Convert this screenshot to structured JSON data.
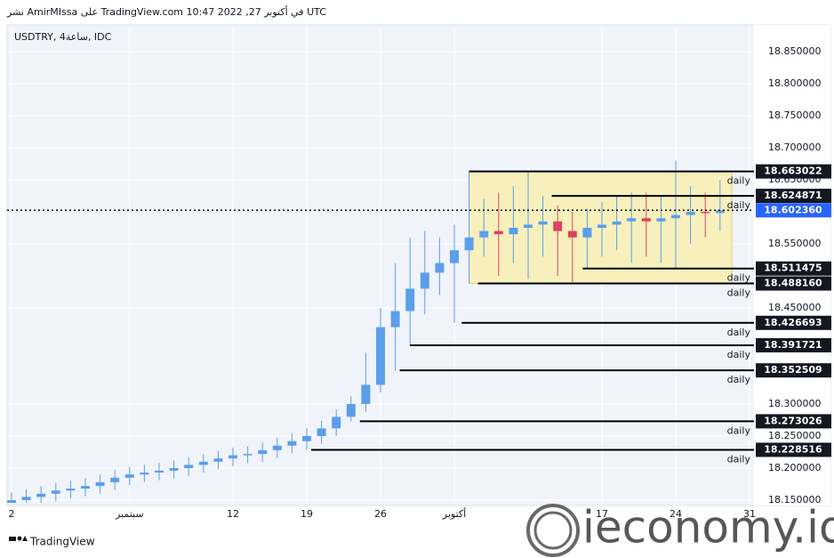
{
  "header": {
    "text": "نشر AmirMIssa على TradingView.com في أكتوبر 27, 2022 10:47 UTC"
  },
  "footer": {
    "brand": "TradingView",
    "watermark": "ieconomy.io"
  },
  "chart_data": {
    "type": "candlestick",
    "symbol": "USDTRY, 4ساعة, IDC",
    "up_color": "#5b9ee9",
    "down_color": "#e0405f",
    "x": [
      0,
      1,
      2,
      3,
      4,
      5,
      6,
      7,
      8,
      9,
      10,
      11,
      12,
      13,
      14,
      15,
      16,
      17,
      18,
      19,
      20,
      21,
      22,
      23,
      24,
      25,
      26,
      27,
      28,
      29,
      30,
      31,
      32,
      33,
      34,
      35,
      36,
      37,
      38,
      39,
      40,
      41,
      42,
      43,
      44,
      45,
      46,
      47,
      48
    ],
    "open": [
      18.145,
      18.15,
      18.155,
      18.16,
      18.165,
      18.168,
      18.172,
      18.178,
      18.185,
      18.19,
      18.193,
      18.196,
      18.2,
      18.205,
      18.21,
      18.215,
      18.22,
      18.222,
      18.228,
      18.235,
      18.242,
      18.25,
      18.262,
      18.28,
      18.3,
      18.33,
      18.42,
      18.445,
      18.48,
      18.505,
      18.52,
      18.54,
      18.56,
      18.57,
      18.565,
      18.575,
      18.58,
      18.585,
      18.57,
      18.56,
      18.575,
      18.58,
      18.585,
      18.59,
      18.585,
      18.59,
      18.595,
      18.6,
      18.598
    ],
    "high": [
      18.162,
      18.167,
      18.172,
      18.177,
      18.18,
      18.184,
      18.19,
      18.197,
      18.202,
      18.205,
      18.208,
      18.212,
      18.217,
      18.222,
      18.227,
      18.232,
      18.234,
      18.24,
      18.247,
      18.254,
      18.262,
      18.274,
      18.292,
      18.312,
      18.38,
      18.45,
      18.52,
      18.56,
      18.57,
      18.56,
      18.58,
      18.663022,
      18.62,
      18.63,
      18.64,
      18.663,
      18.624871,
      18.61,
      18.6,
      18.605,
      18.615,
      18.625,
      18.63,
      18.63,
      18.625,
      18.68,
      18.64,
      18.63,
      18.65
    ],
    "low": [
      18.133,
      18.138,
      18.143,
      18.148,
      18.153,
      18.156,
      18.16,
      18.166,
      18.173,
      18.178,
      18.181,
      18.184,
      18.188,
      18.193,
      18.198,
      18.203,
      18.208,
      18.21,
      18.216,
      18.223,
      18.228516,
      18.238,
      18.25,
      18.273026,
      18.288,
      18.318,
      18.352509,
      18.391721,
      18.44,
      18.47,
      18.426693,
      18.48816,
      18.53,
      18.5,
      18.52,
      18.495,
      18.53,
      18.5,
      18.49,
      18.511475,
      18.53,
      18.54,
      18.52,
      18.53,
      18.52,
      18.51,
      18.55,
      18.56,
      18.57
    ],
    "close": [
      18.15,
      18.155,
      18.16,
      18.165,
      18.168,
      18.172,
      18.178,
      18.185,
      18.19,
      18.193,
      18.196,
      18.2,
      18.205,
      18.21,
      18.215,
      18.22,
      18.222,
      18.228,
      18.235,
      18.242,
      18.25,
      18.262,
      18.28,
      18.3,
      18.33,
      18.42,
      18.445,
      18.48,
      18.505,
      18.52,
      18.54,
      18.56,
      18.57,
      18.565,
      18.575,
      18.58,
      18.585,
      18.57,
      18.56,
      18.575,
      18.58,
      18.585,
      18.59,
      18.585,
      18.59,
      18.595,
      18.6,
      18.598,
      18.60236
    ],
    "xlim": [
      -0.3,
      50.3
    ],
    "ylim": [
      18.1458,
      18.8889
    ],
    "xticks": [
      {
        "value": 0,
        "label": "2"
      },
      {
        "value": 8,
        "label": "سبتمبر"
      },
      {
        "value": 15,
        "label": "12"
      },
      {
        "value": 20,
        "label": "19"
      },
      {
        "value": 25,
        "label": "26"
      },
      {
        "value": 30,
        "label": "أكتوبر"
      },
      {
        "value": 40,
        "label": "17"
      },
      {
        "value": 45,
        "label": "24"
      },
      {
        "value": 50,
        "label": "31"
      }
    ],
    "yticks": [
      {
        "value": 18.15,
        "label": "18.150000"
      },
      {
        "value": 18.2,
        "label": "18.200000"
      },
      {
        "value": 18.25,
        "label": "18.250000"
      },
      {
        "value": 18.3,
        "label": "18.300000"
      },
      {
        "value": 18.45,
        "label": "18.450000"
      },
      {
        "value": 18.55,
        "label": "18.550000"
      },
      {
        "value": 18.65,
        "label": "18.650000"
      },
      {
        "value": 18.7,
        "label": "18.700000"
      },
      {
        "value": 18.75,
        "label": "18.750000"
      },
      {
        "value": 18.8,
        "label": "18.800000"
      },
      {
        "value": 18.85,
        "label": "18.850000"
      }
    ],
    "grid": true,
    "box": {
      "from": 31,
      "to": 48.8,
      "color": "#f8efb0"
    },
    "levels": [
      {
        "value": 18.663022,
        "label": "18.663022",
        "from": 31,
        "note": "daily"
      },
      {
        "value": 18.624871,
        "label": "18.624871",
        "from": 36.6,
        "note": "daily"
      },
      {
        "value": 18.511475,
        "label": "18.511475",
        "from": 38.7,
        "note": "daily"
      },
      {
        "value": 18.48816,
        "label": "18.488160",
        "from": 31.6,
        "note": "daily"
      },
      {
        "value": 18.426693,
        "label": "18.426693",
        "from": 30.5,
        "note": "daily"
      },
      {
        "value": 18.391721,
        "label": "18.391721",
        "from": 27,
        "note": "daily"
      },
      {
        "value": 18.352509,
        "label": "18.352509",
        "from": 26.3,
        "note": "daily"
      },
      {
        "value": 18.273026,
        "label": "18.273026",
        "from": 23.6,
        "note": "daily"
      },
      {
        "value": 18.228516,
        "label": "18.228516",
        "from": 20.3,
        "note": "daily"
      }
    ],
    "last_price": {
      "value": 18.60236,
      "label": "18.602360",
      "color": "#2962ff"
    }
  }
}
